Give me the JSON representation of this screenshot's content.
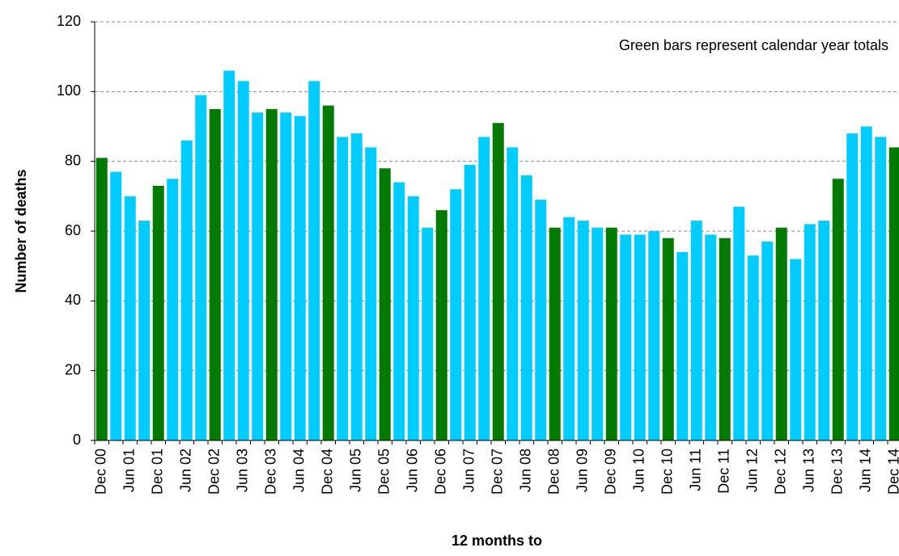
{
  "chart_data": {
    "type": "bar",
    "y_label": "Number of deaths",
    "x_label": "12 months to",
    "annotation": "Green bars represent calendar year totals",
    "categories": [
      "Dec 00",
      null,
      "Jun 01",
      null,
      "Dec 01",
      null,
      "Jun 02",
      null,
      "Dec 02",
      null,
      "Jun 03",
      null,
      "Dec 03",
      null,
      "Jun 04",
      null,
      "Dec 04",
      null,
      "Jun 05",
      null,
      "Dec 05",
      null,
      "Jun 06",
      null,
      "Dec 06",
      null,
      "Jun 07",
      null,
      "Dec 07",
      null,
      "Jun 08",
      null,
      "Dec 08",
      null,
      "Jun 09",
      null,
      "Dec 09",
      null,
      "Jun 10",
      null,
      "Dec 10",
      null,
      "Jun 11",
      null,
      "Dec 11",
      null,
      "Jun 12",
      null,
      "Dec 12",
      null,
      "Jun 13",
      null,
      "Dec 13",
      null,
      "Jun 14",
      null,
      "Dec 14"
    ],
    "values": [
      81,
      77,
      70,
      63,
      73,
      75,
      86,
      99,
      95,
      106,
      103,
      94,
      95,
      94,
      93,
      103,
      96,
      87,
      88,
      84,
      78,
      74,
      70,
      61,
      66,
      72,
      79,
      87,
      91,
      84,
      76,
      69,
      61,
      64,
      63,
      61,
      61,
      59,
      59,
      60,
      58,
      54,
      63,
      59,
      58,
      67,
      53,
      57,
      61,
      52,
      62,
      63,
      75,
      88,
      90,
      87,
      84
    ],
    "colors": [
      "#007a00",
      "#00ccff",
      "#00ccff",
      "#00ccff",
      "#007a00",
      "#00ccff",
      "#00ccff",
      "#00ccff",
      "#007a00",
      "#00ccff",
      "#00ccff",
      "#00ccff",
      "#007a00",
      "#00ccff",
      "#00ccff",
      "#00ccff",
      "#007a00",
      "#00ccff",
      "#00ccff",
      "#00ccff",
      "#007a00",
      "#00ccff",
      "#00ccff",
      "#00ccff",
      "#007a00",
      "#00ccff",
      "#00ccff",
      "#00ccff",
      "#007a00",
      "#00ccff",
      "#00ccff",
      "#00ccff",
      "#007a00",
      "#00ccff",
      "#00ccff",
      "#00ccff",
      "#007a00",
      "#00ccff",
      "#00ccff",
      "#00ccff",
      "#007a00",
      "#00ccff",
      "#00ccff",
      "#00ccff",
      "#007a00",
      "#00ccff",
      "#00ccff",
      "#00ccff",
      "#007a00",
      "#00ccff",
      "#00ccff",
      "#00ccff",
      "#007a00",
      "#00ccff",
      "#00ccff",
      "#00ccff",
      "#007a00"
    ],
    "ylim": [
      0,
      120
    ],
    "yticks": [
      0,
      20,
      40,
      60,
      80,
      100,
      120
    ],
    "grid": true
  }
}
